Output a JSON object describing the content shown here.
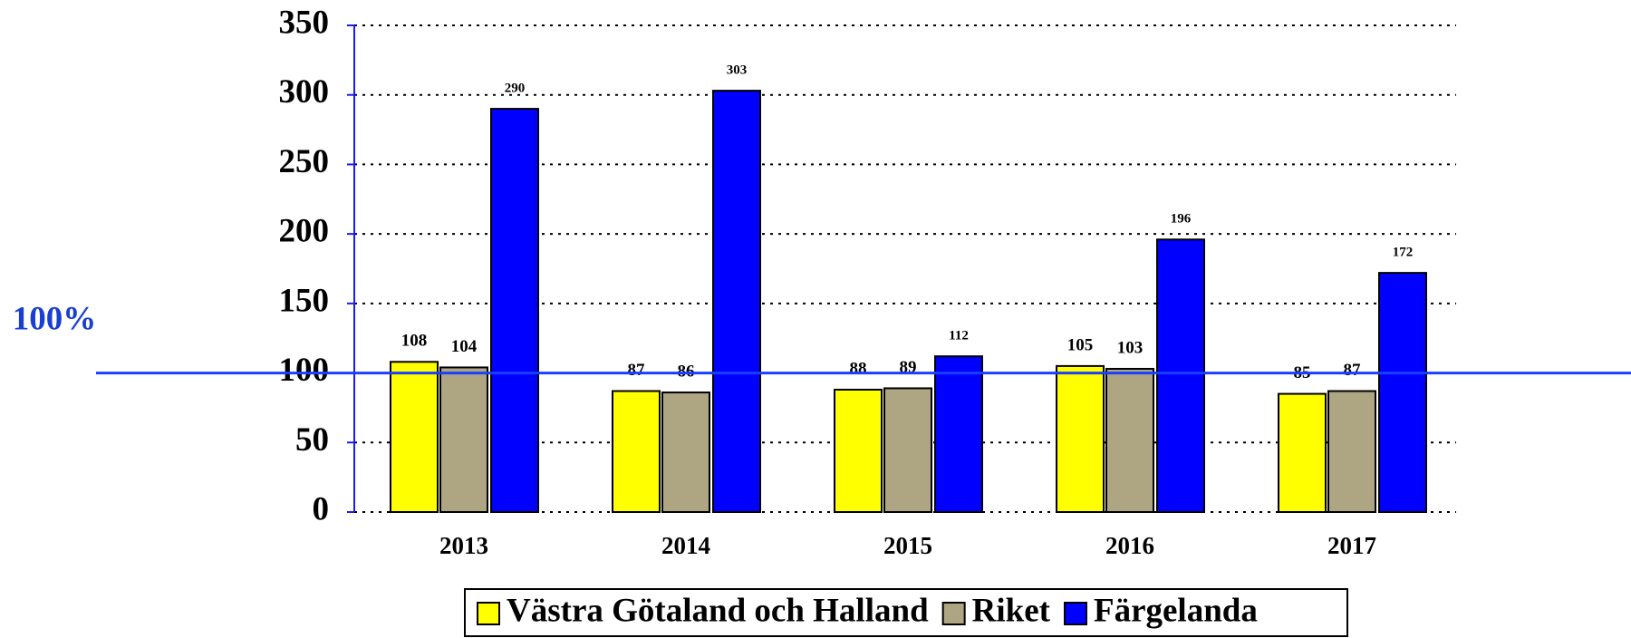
{
  "chart_data": {
    "type": "bar",
    "categories": [
      "2013",
      "2014",
      "2015",
      "2016",
      "2017"
    ],
    "series": [
      {
        "name": "Västra Götaland och Halland",
        "color": "#ffff00",
        "values": [
          108,
          87,
          88,
          105,
          85
        ]
      },
      {
        "name": "Riket",
        "color": "#aea583",
        "values": [
          104,
          86,
          89,
          103,
          87
        ]
      },
      {
        "name": "Färgelanda",
        "color": "#0000ff",
        "values": [
          290,
          303,
          112,
          196,
          172
        ]
      }
    ],
    "ylim": [
      0,
      350
    ],
    "yticks": [
      0,
      50,
      100,
      150,
      200,
      250,
      300,
      350
    ],
    "grid": true,
    "reference_line": {
      "value": 100,
      "label": "100%",
      "color": "#1a3fff"
    },
    "legend": "bottom"
  }
}
